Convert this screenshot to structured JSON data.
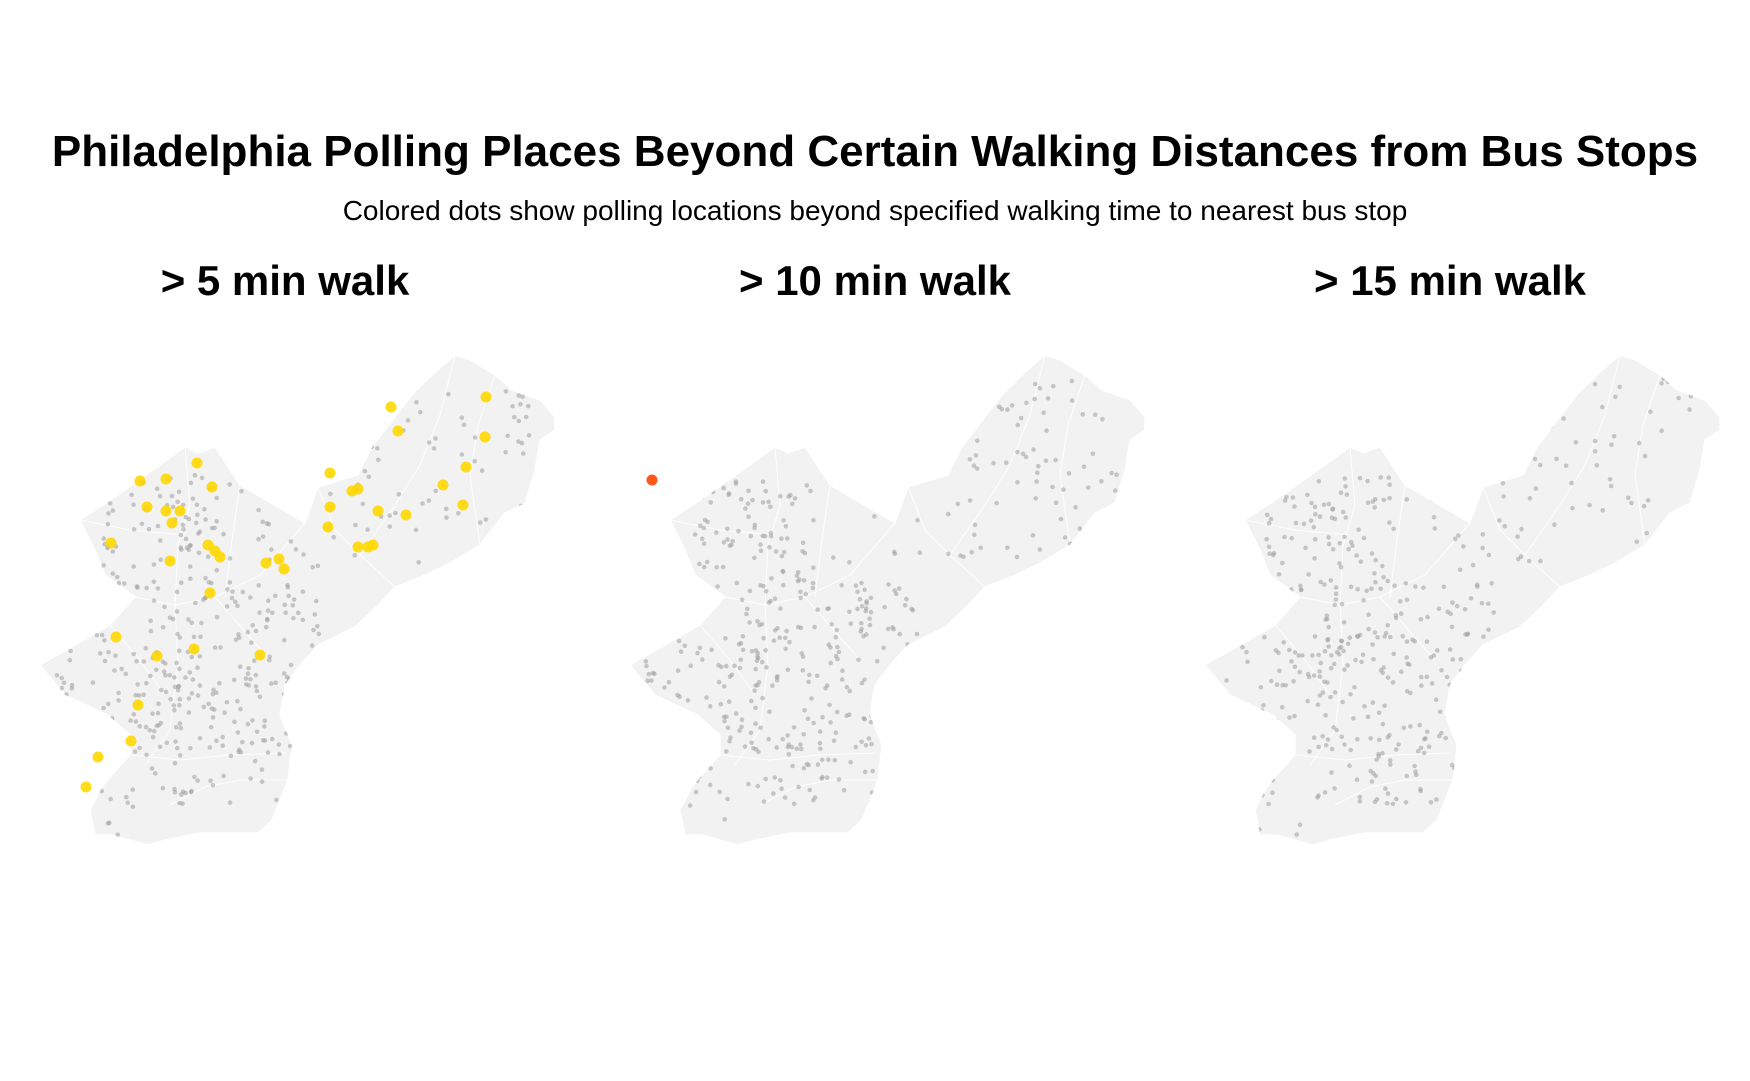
{
  "title": "Philadelphia Polling Places Beyond Certain Walking Distances from Bus Stops",
  "subtitle": "Colored dots show polling locations beyond specified walking time to nearest bus stop",
  "colors": {
    "base_dot": "#9e9e9e",
    "map_fill": "#f2f2f2",
    "highlight_5min": "#ffd700",
    "highlight_10min": "#ff4500"
  },
  "panels": [
    {
      "label": "> 5 min walk",
      "highlight_color": "#ffd700",
      "highlighted_polling_places": 49
    },
    {
      "label": "> 10 min walk",
      "highlight_color": "#ff4500",
      "highlighted_polling_places": 1
    },
    {
      "label": "> 15 min walk",
      "highlight_color": "#ff4500",
      "highlighted_polling_places": 0
    }
  ]
}
